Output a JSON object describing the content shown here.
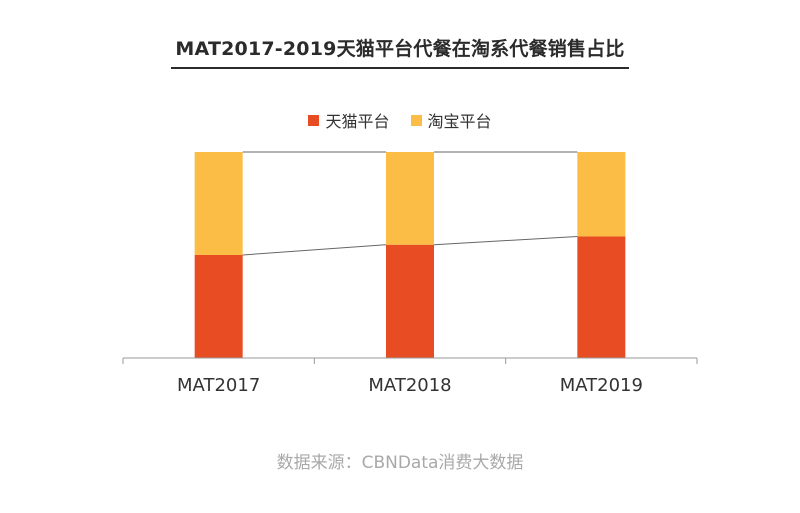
{
  "colors": {
    "tmall": "#e84c22",
    "taobao": "#fbbd45",
    "axis": "#9a9a9a",
    "connector": "#666666"
  },
  "source": "数据来源：CBNData消费大数据",
  "chart_data": {
    "type": "bar",
    "stacked": true,
    "percent_stacked": true,
    "title": "MAT2017-2019天猫平台代餐在淘系代餐销售占比",
    "categories": [
      "MAT2017",
      "MAT2018",
      "MAT2019"
    ],
    "series": [
      {
        "name": "天猫平台",
        "values": [
          0.5,
          0.55,
          0.59
        ],
        "color": "#e84c22"
      },
      {
        "name": "淘宝平台",
        "values": [
          0.5,
          0.45,
          0.41
        ],
        "color": "#fbbd45"
      }
    ],
    "ylim": [
      0,
      1
    ],
    "legend_position": "top-center",
    "grid": false,
    "connector_lines": true
  }
}
